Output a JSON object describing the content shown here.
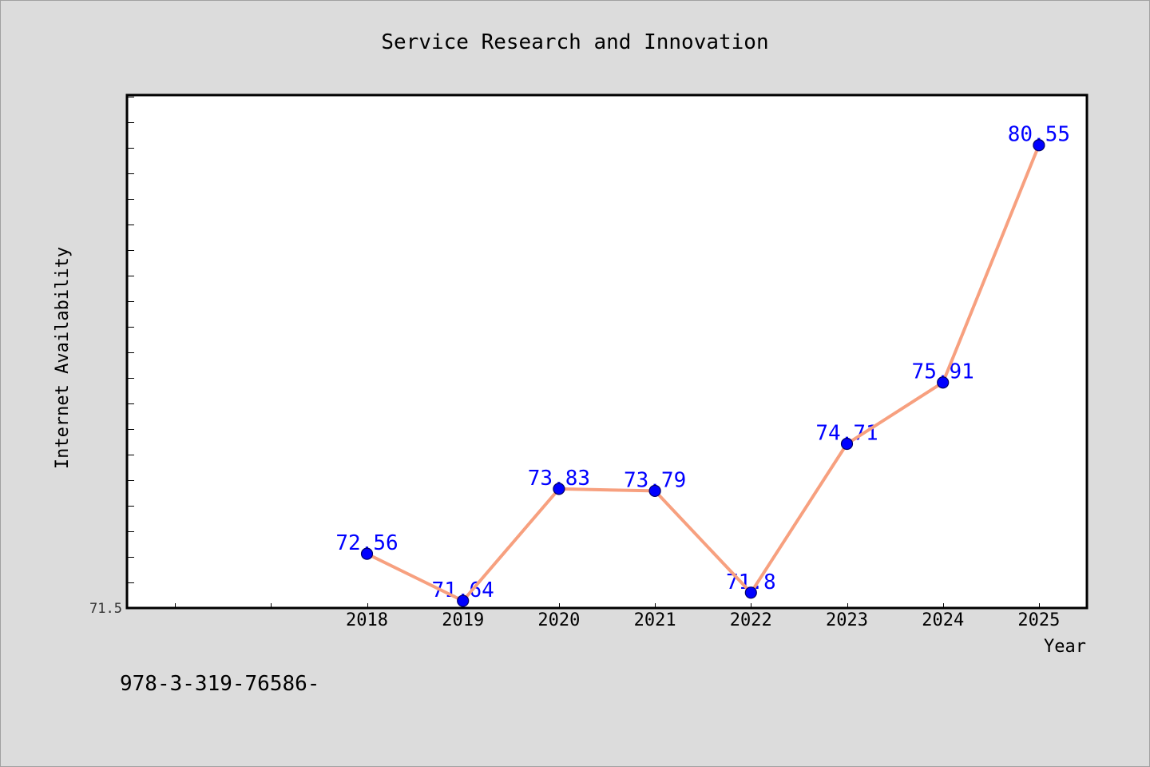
{
  "chart_data": {
    "type": "line",
    "title": "Service Research and Innovation",
    "xlabel": "Year",
    "ylabel": "Internet Availability",
    "x": [
      2018,
      2019,
      2020,
      2021,
      2022,
      2023,
      2024,
      2025
    ],
    "series": [
      {
        "values": [
          72.56,
          71.64,
          73.83,
          73.79,
          71.8,
          74.71,
          75.91,
          80.55
        ],
        "data_labels": [
          "72.56",
          "71.64",
          "73.83",
          "73.79",
          "71.8",
          "74.71",
          "75.91",
          "80.55"
        ],
        "marker": "circle"
      }
    ],
    "xlim": [
      2015.5,
      2025.5
    ],
    "ylim": [
      71.5,
      81.53
    ],
    "xticks": [
      2016,
      2017,
      2018,
      2019,
      2020,
      2021,
      2022,
      2023,
      2024,
      2025
    ],
    "xtick_labels": [
      "",
      "",
      "2018",
      "2019",
      "2020",
      "2021",
      "2022",
      "2023",
      "2024",
      "2025"
    ],
    "yticks": [
      71.5
    ],
    "ytick_labels": [
      "71.5"
    ],
    "y_minor_tick_step": 0.5,
    "grid": false,
    "legend": "none",
    "colors": {
      "background": "#dcdcdc",
      "plot_background": "#ffffff",
      "axis": "#000000",
      "line": "#f7a07f",
      "marker": "#0000ff",
      "marker_edge": "#000066",
      "data_label": "#0000ff"
    }
  },
  "footnote": "978-3-319-76586-"
}
